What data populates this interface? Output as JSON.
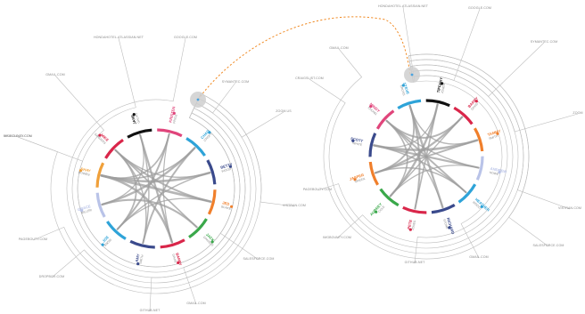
{
  "colors": {
    "background": "#ffffff",
    "outer_lines": "#bdbdbd",
    "chords": "#9e9e9e",
    "hub": "#cfcfcf",
    "hub_center": "#4aa3df",
    "link_dash": "#f08a24"
  },
  "left_diagram": {
    "domains": [
      "GMAIL.COM",
      "HONDAHOTEL.ATLASSIAN.NET",
      "GOOGLE.COM",
      "SYMANTEC.COM",
      "ZOOM.US",
      "VISTRAN.COM",
      "SALESFORCE.COM",
      "GMAIL.COM",
      "GITHUB.NET",
      "DROPBOX.COM",
      "PAGEBOUTY.COM",
      "IMGBOUNTY.COM",
      "MAILCLOUD.COM"
    ],
    "people": [
      {
        "name": "JANE",
        "sub": "GALAN",
        "color": "#111111"
      },
      {
        "name": "KRISTEN",
        "sub": "PRICE",
        "color": "#e0457b"
      },
      {
        "name": "CHAD",
        "sub": "CROFT",
        "color": "#2ea3d8"
      },
      {
        "name": "BETTY",
        "sub": "WOOD",
        "color": "#3a4a8c"
      },
      {
        "name": "JED",
        "sub": "BLAKE",
        "color": "#f07f2b"
      },
      {
        "name": "JACK",
        "sub": "DANIELS",
        "color": "#3aa84a"
      },
      {
        "name": "BARRY",
        "sub": "DAVIS",
        "color": "#d9264a"
      },
      {
        "name": "AMY",
        "sub": "SMITH",
        "color": "#3a4a8c"
      },
      {
        "name": "JOE",
        "sub": "SNOW",
        "color": "#2ea3d8"
      },
      {
        "name": "GRACE",
        "sub": "MILLER",
        "color": "#b9c3e8"
      },
      {
        "name": "SHAY",
        "sub": "BOWEN",
        "color": "#f0a03a"
      },
      {
        "name": "MIKE",
        "sub": "SANDERS",
        "color": "#d9264a"
      }
    ]
  },
  "right_diagram": {
    "domains": [
      "HONDAHOTEL.ATLASSIAN.NET",
      "GOOGLE.COM",
      "SYMANTEC.COM",
      "ZOOM",
      "VISTRAN.COM",
      "SALESFORCE.COM",
      "GMAIL.COM",
      "GITHUB.NET",
      "IMGBOUNTY.COM",
      "PAGEBOUTY.COM",
      "CRAIGSLIST.COM",
      "GMAIL.COM"
    ],
    "people": [
      {
        "name": "TIFFANY",
        "sub": "JONES",
        "color": "#111111"
      },
      {
        "name": "BARRY",
        "sub": "DAVIS",
        "color": "#d9264a"
      },
      {
        "name": "TAMMY",
        "sub": "SMITH",
        "color": "#f07f2b"
      },
      {
        "name": "ANDREW",
        "sub": "HOWE",
        "color": "#b9c3e8"
      },
      {
        "name": "HEATHER",
        "sub": "WOOD",
        "color": "#2ea3d8"
      },
      {
        "name": "RICHARD",
        "sub": "STONE",
        "color": "#3a4a8c"
      },
      {
        "name": "PETE",
        "sub": "JONES",
        "color": "#d9264a"
      },
      {
        "name": "AUBREY",
        "sub": "COLE",
        "color": "#3aa84a"
      },
      {
        "name": "JASPER",
        "sub": "GREEN",
        "color": "#f07f2b"
      },
      {
        "name": "SCOTT",
        "sub": "WHITE",
        "color": "#3a4a8c"
      },
      {
        "name": "MINDY",
        "sub": "CHUNG",
        "color": "#e0457b"
      },
      {
        "name": "STEVE",
        "sub": "CROSS",
        "color": "#2ea3d8"
      }
    ]
  }
}
